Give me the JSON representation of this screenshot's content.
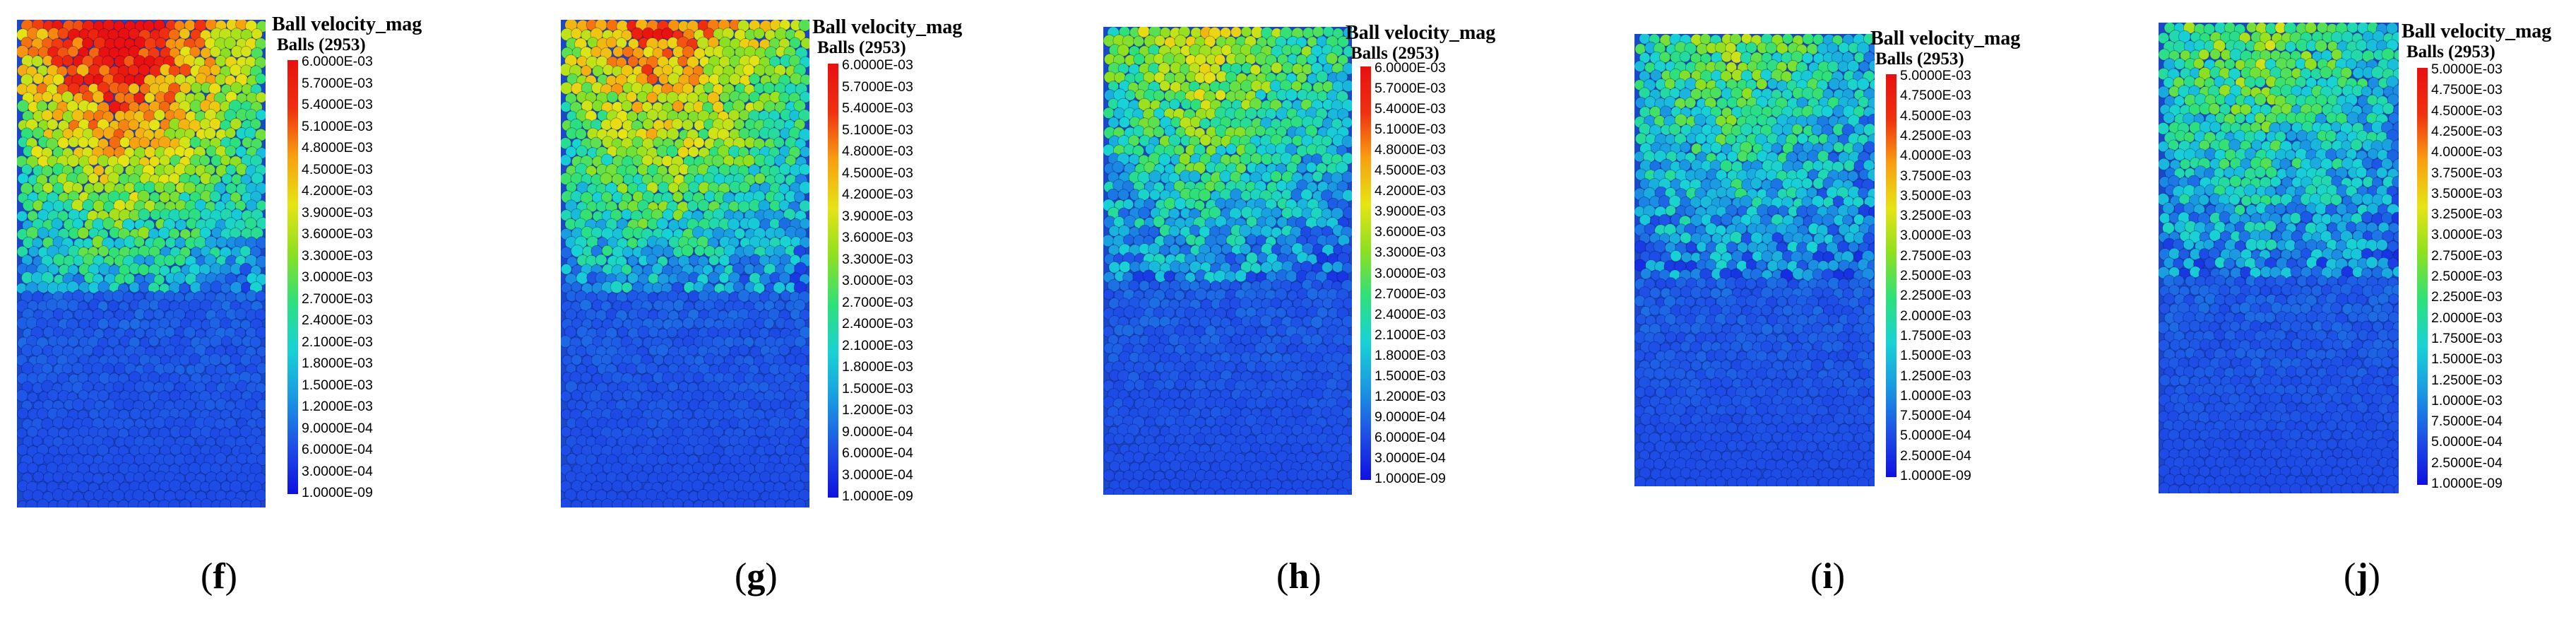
{
  "colors": {
    "scale": [
      "#1010e0",
      "#1e50e6",
      "#1a98e2",
      "#18d2d6",
      "#2ee07a",
      "#8ee020",
      "#e6e414",
      "#f8a010",
      "#f03010",
      "#e81010"
    ]
  },
  "panels": [
    {
      "id": "f",
      "title": "Ball velocity_mag",
      "subtitle": "Balls (2953)",
      "caption_open": "(",
      "caption_letter": "f",
      "caption_close": ")",
      "hot_level": 1.0,
      "ticks": [
        "6.0000E-03",
        "5.7000E-03",
        "5.4000E-03",
        "5.1000E-03",
        "4.8000E-03",
        "4.5000E-03",
        "4.2000E-03",
        "3.9000E-03",
        "3.6000E-03",
        "3.3000E-03",
        "3.0000E-03",
        "2.7000E-03",
        "2.4000E-03",
        "2.1000E-03",
        "1.8000E-03",
        "1.5000E-03",
        "1.2000E-03",
        "9.0000E-04",
        "6.0000E-04",
        "3.0000E-04",
        "1.0000E-09"
      ]
    },
    {
      "id": "g",
      "title": "Ball velocity_mag",
      "subtitle": "Balls (2953)",
      "caption_open": "(",
      "caption_letter": "g",
      "caption_close": ")",
      "hot_level": 0.8,
      "ticks": [
        "6.0000E-03",
        "5.7000E-03",
        "5.4000E-03",
        "5.1000E-03",
        "4.8000E-03",
        "4.5000E-03",
        "4.2000E-03",
        "3.9000E-03",
        "3.6000E-03",
        "3.3000E-03",
        "3.0000E-03",
        "2.7000E-03",
        "2.4000E-03",
        "2.1000E-03",
        "1.8000E-03",
        "1.5000E-03",
        "1.2000E-03",
        "9.0000E-04",
        "6.0000E-04",
        "3.0000E-04",
        "1.0000E-09"
      ]
    },
    {
      "id": "h",
      "title": "Ball velocity_mag",
      "subtitle": "Balls (2953)",
      "caption_open": "(",
      "caption_letter": "h",
      "caption_close": ")",
      "hot_level": 0.55,
      "ticks": [
        "6.0000E-03",
        "5.7000E-03",
        "5.4000E-03",
        "5.1000E-03",
        "4.8000E-03",
        "4.5000E-03",
        "4.2000E-03",
        "3.9000E-03",
        "3.6000E-03",
        "3.3000E-03",
        "3.0000E-03",
        "2.7000E-03",
        "2.4000E-03",
        "2.1000E-03",
        "1.8000E-03",
        "1.5000E-03",
        "1.2000E-03",
        "9.0000E-04",
        "6.0000E-04",
        "3.0000E-04",
        "1.0000E-09"
      ]
    },
    {
      "id": "i",
      "title": "Ball velocity_mag",
      "subtitle": "Balls (2953)",
      "caption_open": "(",
      "caption_letter": "i",
      "caption_close": ")",
      "hot_level": 0.42,
      "ticks": [
        "5.0000E-03",
        "4.7500E-03",
        "4.5000E-03",
        "4.2500E-03",
        "4.0000E-03",
        "3.7500E-03",
        "3.5000E-03",
        "3.2500E-03",
        "3.0000E-03",
        "2.7500E-03",
        "2.5000E-03",
        "2.2500E-03",
        "2.0000E-03",
        "1.7500E-03",
        "1.5000E-03",
        "1.2500E-03",
        "1.0000E-03",
        "7.5000E-04",
        "5.0000E-04",
        "2.5000E-04",
        "1.0000E-09"
      ]
    },
    {
      "id": "j",
      "title": "Ball velocity_mag",
      "subtitle": "Balls (2953)",
      "caption_open": "(",
      "caption_letter": "j",
      "caption_close": ")",
      "hot_level": 0.45,
      "ticks": [
        "5.0000E-03",
        "4.7500E-03",
        "4.5000E-03",
        "4.2500E-03",
        "4.0000E-03",
        "3.7500E-03",
        "3.5000E-03",
        "3.2500E-03",
        "3.0000E-03",
        "2.7500E-03",
        "2.5000E-03",
        "2.2500E-03",
        "2.0000E-03",
        "1.7500E-03",
        "1.5000E-03",
        "1.2500E-03",
        "1.0000E-03",
        "7.5000E-04",
        "5.0000E-04",
        "2.5000E-04",
        "1.0000E-09"
      ]
    }
  ]
}
